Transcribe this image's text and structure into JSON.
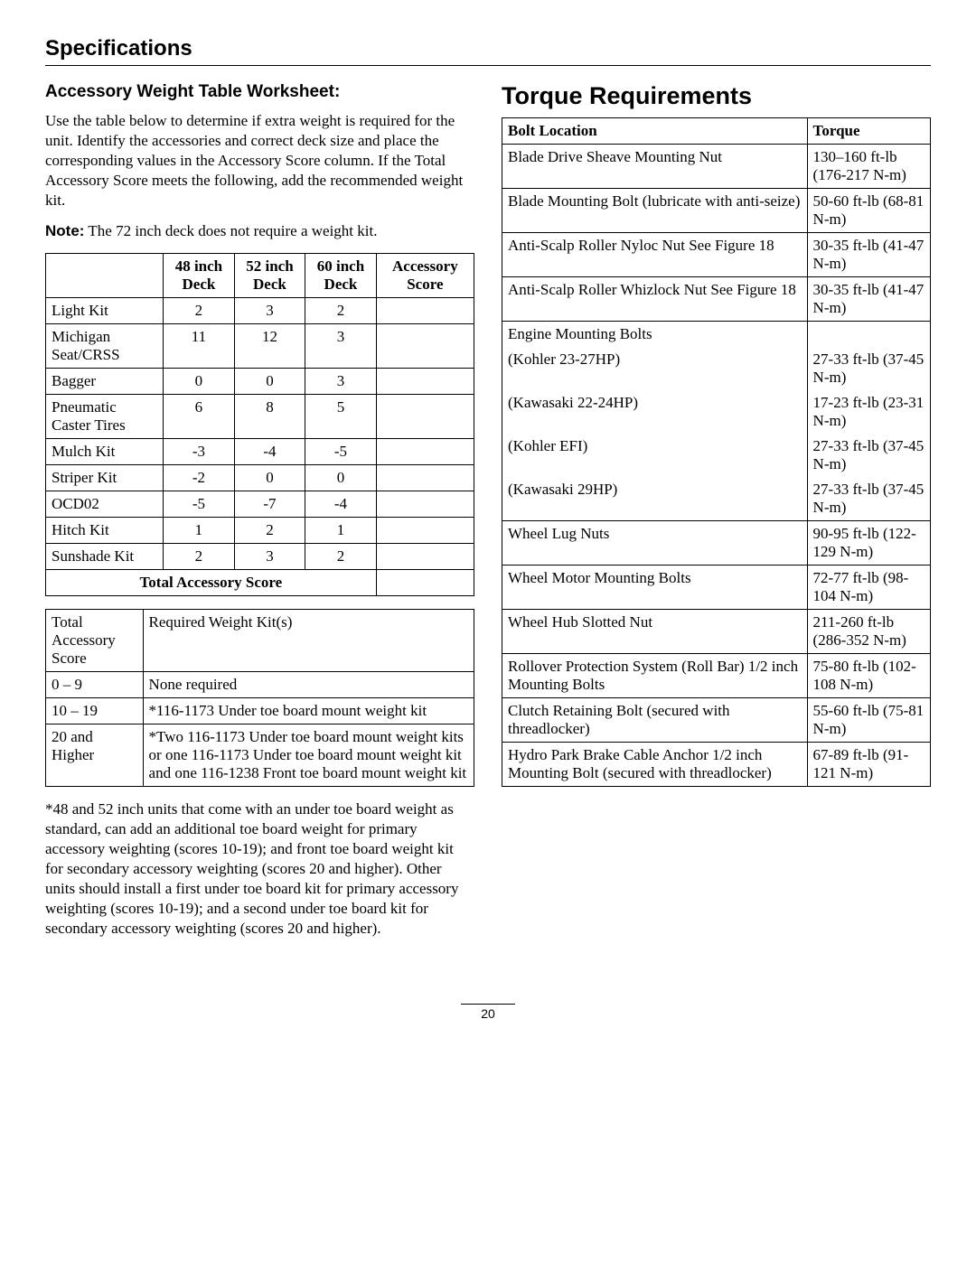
{
  "section_title": "Specifications",
  "left": {
    "subsection_title": "Accessory Weight Table Worksheet:",
    "intro": "Use the table below to determine if extra weight is required for the unit. Identify the accessories and correct deck size and place the corresponding values in the Accessory Score column. If the Total Accessory Score meets the following, add the recommended weight kit.",
    "note_label": "Note:",
    "note_text": "The 72 inch deck does not require a weight kit.",
    "acc_table": {
      "headers": [
        "",
        "48 inch Deck",
        "52 inch Deck",
        "60 inch Deck",
        "Accessory Score"
      ],
      "rows": [
        [
          "Light Kit",
          "2",
          "3",
          "2",
          ""
        ],
        [
          "Michigan Seat/CRSS",
          "11",
          "12",
          "3",
          ""
        ],
        [
          "Bagger",
          "0",
          "0",
          "3",
          ""
        ],
        [
          "Pneumatic Caster Tires",
          "6",
          "8",
          "5",
          ""
        ],
        [
          "Mulch Kit",
          "-3",
          "-4",
          "-5",
          ""
        ],
        [
          "Striper Kit",
          "-2",
          "0",
          "0",
          ""
        ],
        [
          "OCD02",
          "-5",
          "-7",
          "-4",
          ""
        ],
        [
          "Hitch Kit",
          "1",
          "2",
          "1",
          ""
        ],
        [
          "Sunshade Kit",
          "2",
          "3",
          "2",
          ""
        ]
      ],
      "total_label": "Total Accessory Score"
    },
    "req_table": {
      "headers": [
        "Total Accessory Score",
        "Required Weight Kit(s)"
      ],
      "rows": [
        [
          "0 – 9",
          "None required"
        ],
        [
          "10 – 19",
          "*116-1173 Under toe board mount weight kit"
        ],
        [
          "20 and Higher",
          "*Two 116-1173 Under toe board mount weight kits or one 116-1173 Under toe board mount weight kit and one 116-1238 Front toe board mount weight kit"
        ]
      ]
    },
    "footnote": "*48 and 52 inch units that come with an under toe board weight as standard, can add an additional toe board weight for primary accessory weighting (scores 10-19); and front toe board weight kit for secondary accessory weighting (scores 20 and higher). Other units should install a first under toe board kit for primary accessory weighting (scores 10-19); and a second under toe board kit for secondary accessory weighting (scores 20 and higher)."
  },
  "right": {
    "title": "Torque Requirements",
    "headers": [
      "Bolt Location",
      "Torque"
    ],
    "rows": [
      {
        "loc": "Blade Drive Sheave Mounting Nut",
        "torque": "130–160 ft-lb (176-217 N-m)",
        "group": "single"
      },
      {
        "loc": "Blade Mounting Bolt (lubricate with anti-seize)",
        "torque": "50-60 ft-lb (68-81 N-m)",
        "group": "single"
      },
      {
        "loc": "Anti-Scalp Roller Nyloc Nut See Figure 18",
        "torque": "30-35 ft-lb (41-47 N-m)",
        "group": "single"
      },
      {
        "loc": "Anti-Scalp Roller Whizlock Nut See Figure 18",
        "torque": "30-35 ft-lb (41-47 N-m)",
        "group": "single"
      },
      {
        "loc": "Engine Mounting Bolts",
        "torque": "",
        "group": "top"
      },
      {
        "loc": "(Kohler 23-27HP)",
        "torque": "27-33 ft-lb (37-45 N-m)",
        "group": "mid"
      },
      {
        "loc": "(Kawasaki 22-24HP)",
        "torque": "17-23 ft-lb (23-31 N-m)",
        "group": "mid"
      },
      {
        "loc": "(Kohler EFI)",
        "torque": "27-33 ft-lb (37-45 N-m)",
        "group": "mid"
      },
      {
        "loc": "(Kawasaki 29HP)",
        "torque": "27-33 ft-lb (37-45 N-m)",
        "group": "bot"
      },
      {
        "loc": "Wheel Lug Nuts",
        "torque": "90-95 ft-lb (122-129 N-m)",
        "group": "single"
      },
      {
        "loc": "Wheel Motor Mounting Bolts",
        "torque": "72-77 ft-lb (98-104 N-m)",
        "group": "single"
      },
      {
        "loc": "Wheel Hub Slotted Nut",
        "torque": "211-260 ft-lb (286-352 N-m)",
        "group": "single"
      },
      {
        "loc": "Rollover Protection System (Roll Bar) 1/2 inch Mounting Bolts",
        "torque": "75-80 ft-lb (102-108 N-m)",
        "group": "single"
      },
      {
        "loc": "Clutch Retaining Bolt (secured with threadlocker)",
        "torque": "55-60 ft-lb (75-81 N-m)",
        "group": "single"
      },
      {
        "loc": "Hydro Park Brake Cable Anchor 1/2 inch Mounting Bolt (secured with threadlocker)",
        "torque": "67-89 ft-lb (91-121 N-m)",
        "group": "single"
      }
    ]
  },
  "page_number": "20"
}
